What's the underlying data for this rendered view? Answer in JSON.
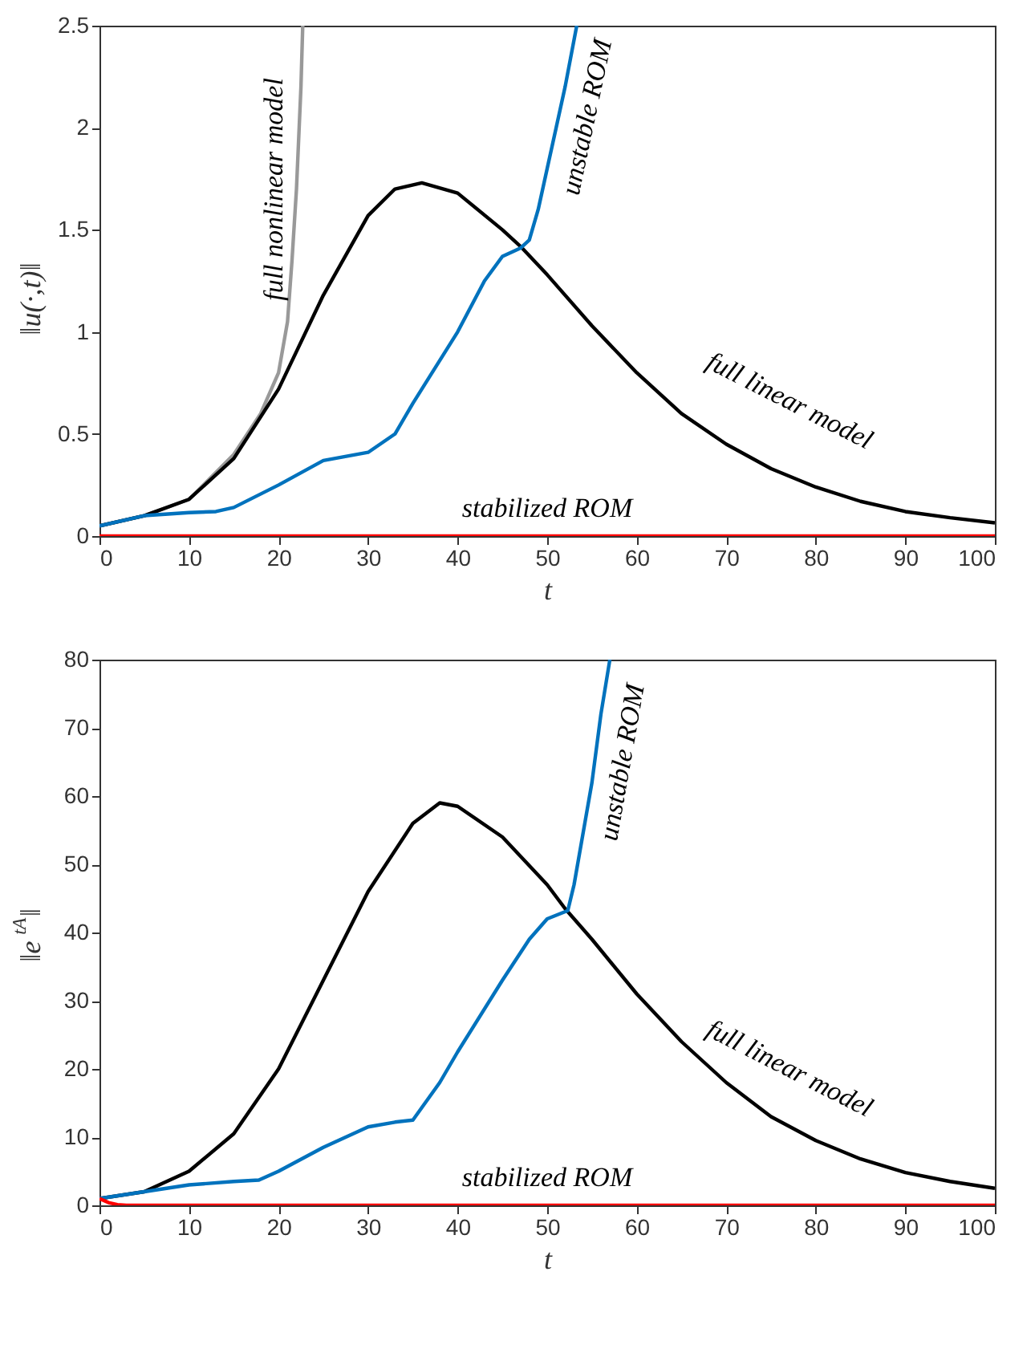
{
  "chart_data": [
    {
      "type": "line",
      "xlabel": "t",
      "ylabel": "‖u(·,t)‖",
      "xlim": [
        0,
        100
      ],
      "ylim": [
        0,
        2.5
      ],
      "xticks": [
        0,
        10,
        20,
        30,
        40,
        50,
        60,
        70,
        80,
        90,
        100
      ],
      "yticks": [
        0,
        0.5,
        1,
        1.5,
        2,
        2.5
      ],
      "line_style": "solid",
      "series": [
        {
          "color": "#999999",
          "x": [
            0,
            5,
            10,
            15,
            18,
            20,
            21,
            21.5,
            22,
            22.5,
            22.7
          ],
          "values": [
            0.05,
            0.1,
            0.18,
            0.4,
            0.6,
            0.8,
            1.05,
            1.35,
            1.7,
            2.2,
            2.5
          ]
        },
        {
          "color": "#000000",
          "x": [
            0,
            5,
            10,
            15,
            20,
            25,
            30,
            33,
            36,
            40,
            45,
            47,
            50,
            55,
            60,
            65,
            70,
            75,
            80,
            85,
            90,
            95,
            100
          ],
          "values": [
            0.05,
            0.1,
            0.18,
            0.38,
            0.72,
            1.18,
            1.57,
            1.7,
            1.73,
            1.68,
            1.5,
            1.42,
            1.28,
            1.03,
            0.8,
            0.6,
            0.45,
            0.33,
            0.24,
            0.17,
            0.12,
            0.09,
            0.065
          ]
        },
        {
          "color": "#0072bd",
          "x": [
            0,
            5,
            10,
            13,
            15,
            20,
            25,
            30,
            33,
            35,
            40,
            43,
            45,
            47,
            48,
            49,
            50,
            51,
            52,
            53.3
          ],
          "values": [
            0.05,
            0.1,
            0.115,
            0.12,
            0.14,
            0.25,
            0.37,
            0.41,
            0.5,
            0.65,
            1.0,
            1.25,
            1.37,
            1.41,
            1.45,
            1.6,
            1.8,
            2.0,
            2.2,
            2.5
          ]
        },
        {
          "color": "#ff0000",
          "x": [
            0,
            100
          ],
          "values": [
            0,
            0
          ]
        }
      ],
      "annotations": [
        "full nonlinear model",
        "unstable ROM",
        "full linear model",
        "stabilized ROM"
      ]
    },
    {
      "type": "line",
      "xlabel": "t",
      "ylabel": "‖e$^{tA}$‖",
      "xlim": [
        0,
        100
      ],
      "ylim": [
        0,
        80
      ],
      "xticks": [
        0,
        10,
        20,
        30,
        40,
        50,
        60,
        70,
        80,
        90,
        100
      ],
      "yticks": [
        0,
        10,
        20,
        30,
        40,
        50,
        60,
        70,
        80
      ],
      "line_style": "solid",
      "series": [
        {
          "color": "#000000",
          "x": [
            0,
            5,
            10,
            15,
            20,
            25,
            30,
            35,
            38,
            40,
            45,
            50,
            52,
            55,
            60,
            65,
            70,
            75,
            80,
            85,
            90,
            95,
            100
          ],
          "values": [
            1,
            2,
            5,
            10.5,
            20,
            33,
            46,
            56,
            59,
            58.5,
            54,
            47,
            43.5,
            39,
            31,
            24,
            18,
            13,
            9.5,
            6.8,
            4.8,
            3.5,
            2.5
          ]
        },
        {
          "color": "#0072bd",
          "x": [
            0,
            5,
            10,
            15,
            17.8,
            20,
            25,
            30,
            33,
            35,
            38,
            40,
            45,
            48,
            50,
            52.3,
            53,
            55,
            56,
            57
          ],
          "values": [
            1,
            2,
            3,
            3.5,
            3.7,
            5,
            8.5,
            11.5,
            12.2,
            12.5,
            18,
            22.5,
            33,
            39,
            42,
            43.2,
            47,
            62,
            72,
            80
          ]
        },
        {
          "color": "#ff0000",
          "x": [
            0,
            1,
            2,
            3,
            100
          ],
          "values": [
            1,
            0.4,
            0.1,
            0,
            0
          ]
        }
      ],
      "annotations": [
        "unstable ROM",
        "full linear model",
        "stabilized ROM"
      ]
    }
  ]
}
